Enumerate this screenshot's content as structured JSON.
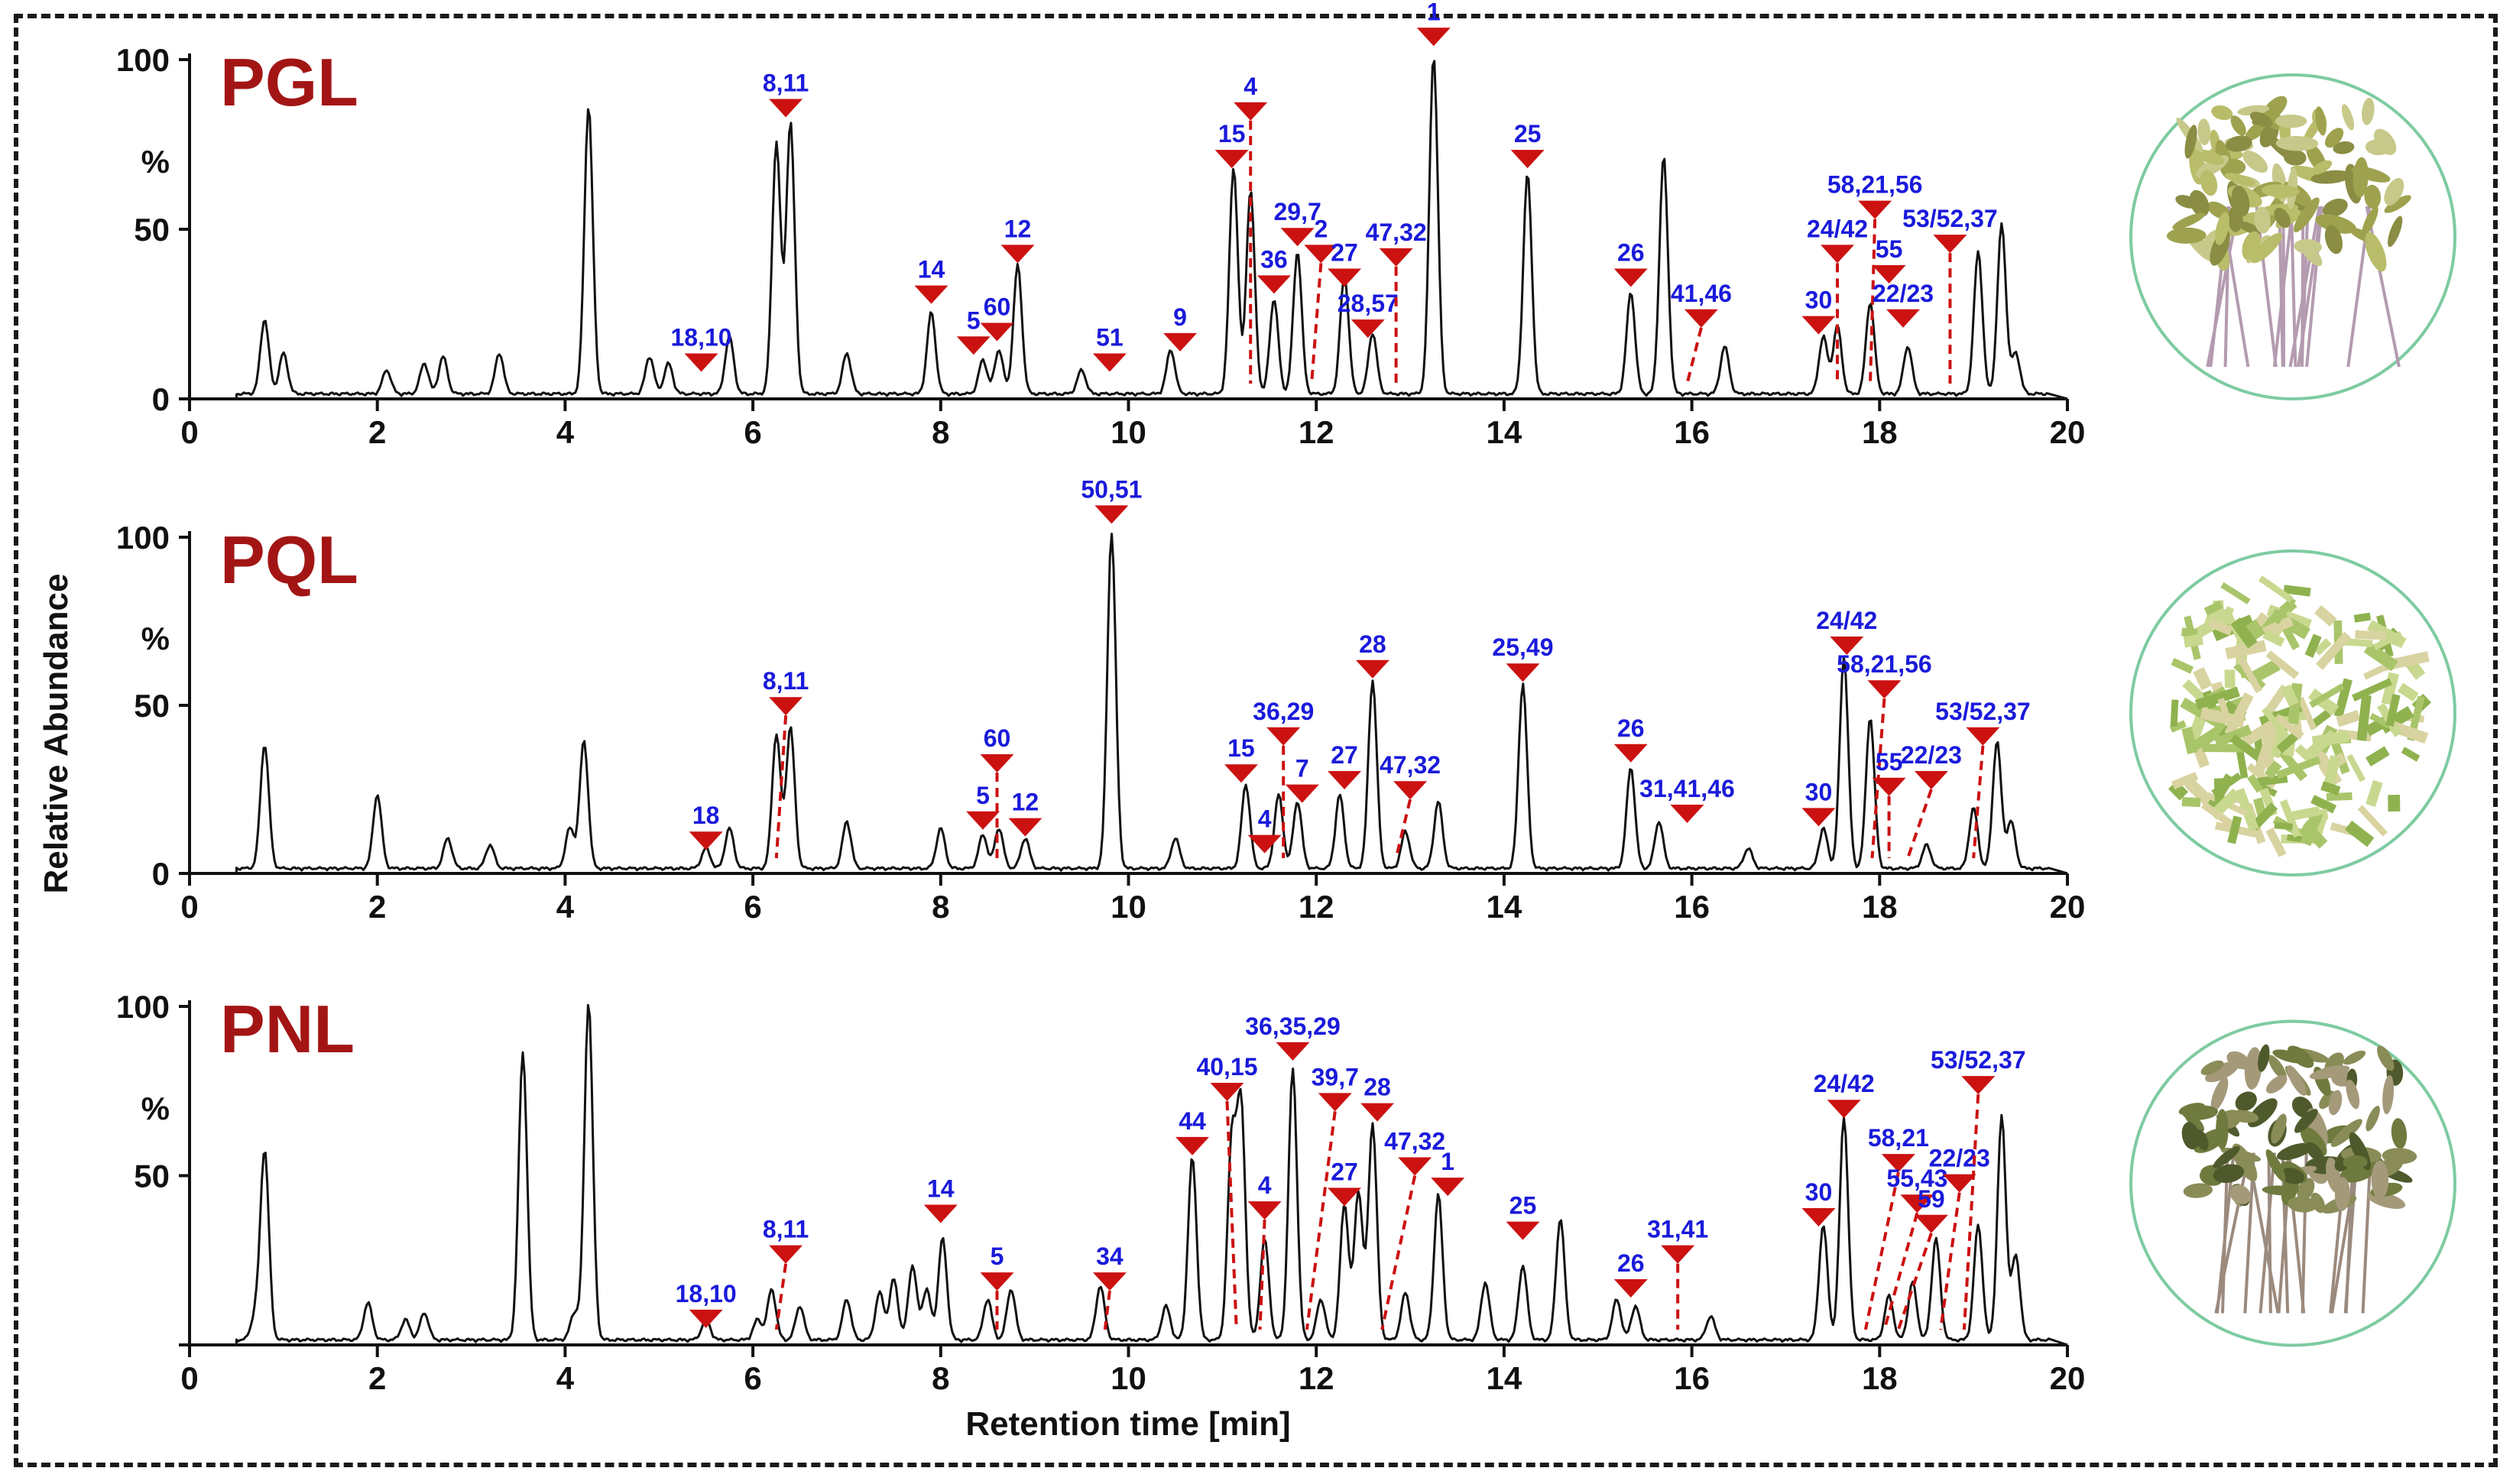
{
  "chart_data": {
    "type": "line",
    "xlabel": "Retention time [min]",
    "ylabel": "Relative Abundance",
    "xlim": [
      0,
      20
    ],
    "ylim": [
      0,
      100
    ],
    "x_ticks": [
      "0",
      "2",
      "4",
      "6",
      "8",
      "10",
      "12",
      "14",
      "16",
      "18",
      "20"
    ],
    "y_tick_labels": [
      "100",
      "%",
      "50",
      "0"
    ],
    "colors": {
      "trace": "#111111",
      "marker": "#cc1111",
      "label": "#1a1adb",
      "sample_title": "#a31515",
      "photo_border": "#7ecba1"
    },
    "panels": [
      {
        "title": "PGL",
        "photo": "dried whole herb with leaves and stems",
        "peaks": [
          [
            0.8,
            22
          ],
          [
            1.0,
            12
          ],
          [
            2.1,
            7
          ],
          [
            2.5,
            9
          ],
          [
            2.7,
            11
          ],
          [
            3.3,
            12
          ],
          [
            4.25,
            85
          ],
          [
            4.9,
            11
          ],
          [
            5.1,
            9
          ],
          [
            5.75,
            17
          ],
          [
            6.25,
            74
          ],
          [
            6.4,
            80
          ],
          [
            7.0,
            12
          ],
          [
            7.9,
            24
          ],
          [
            8.45,
            10
          ],
          [
            8.62,
            13
          ],
          [
            8.82,
            38
          ],
          [
            9.5,
            7
          ],
          [
            10.45,
            13
          ],
          [
            11.12,
            67
          ],
          [
            11.3,
            60
          ],
          [
            11.55,
            28
          ],
          [
            11.8,
            42
          ],
          [
            12.3,
            35
          ],
          [
            12.6,
            18
          ],
          [
            13.25,
            100
          ],
          [
            14.25,
            65
          ],
          [
            15.35,
            30
          ],
          [
            15.7,
            70
          ],
          [
            16.35,
            14
          ],
          [
            17.4,
            17
          ],
          [
            17.55,
            20
          ],
          [
            17.9,
            27
          ],
          [
            18.3,
            14
          ],
          [
            19.05,
            42
          ],
          [
            19.3,
            50
          ],
          [
            19.45,
            12
          ]
        ],
        "markers": [
          {
            "label": "18,10",
            "x": 5.45,
            "y": 8,
            "to": null
          },
          {
            "label": "8,11",
            "x": 6.35,
            "y": 83,
            "to": null
          },
          {
            "label": "14",
            "x": 7.9,
            "y": 28,
            "to": null
          },
          {
            "label": "5",
            "x": 8.35,
            "y": 13,
            "to": null
          },
          {
            "label": "60",
            "x": 8.6,
            "y": 17,
            "to": null
          },
          {
            "label": "12",
            "x": 8.82,
            "y": 40,
            "to": null
          },
          {
            "label": "51",
            "x": 9.8,
            "y": 8,
            "to": null
          },
          {
            "label": "9",
            "x": 10.55,
            "y": 14,
            "to": null
          },
          {
            "label": "15",
            "x": 11.1,
            "y": 68,
            "to": null
          },
          {
            "label": "4",
            "x": 11.3,
            "y": 82,
            "to": 11.3
          },
          {
            "label": "36",
            "x": 11.55,
            "y": 31,
            "to": null
          },
          {
            "label": "29,7",
            "x": 11.8,
            "y": 45,
            "to": null
          },
          {
            "label": "2",
            "x": 12.05,
            "y": 40,
            "to": 11.95
          },
          {
            "label": "27",
            "x": 12.3,
            "y": 33,
            "to": null
          },
          {
            "label": "28,57",
            "x": 12.55,
            "y": 18,
            "to": null
          },
          {
            "label": "47,32",
            "x": 12.85,
            "y": 39,
            "to": 12.85
          },
          {
            "label": "1",
            "x": 13.25,
            "y": 104,
            "to": null
          },
          {
            "label": "25",
            "x": 14.25,
            "y": 68,
            "to": null
          },
          {
            "label": "26",
            "x": 15.35,
            "y": 33,
            "to": null
          },
          {
            "label": "41,46",
            "x": 16.1,
            "y": 21,
            "to": 15.95
          },
          {
            "label": "30",
            "x": 17.35,
            "y": 19,
            "to": null
          },
          {
            "label": "24/42",
            "x": 17.55,
            "y": 40,
            "to": 17.55
          },
          {
            "label": "58,21,56",
            "x": 17.95,
            "y": 53,
            "to": 17.9
          },
          {
            "label": "55",
            "x": 18.1,
            "y": 34,
            "to": null
          },
          {
            "label": "22/23",
            "x": 18.25,
            "y": 21,
            "to": null
          },
          {
            "label": "53/52,37",
            "x": 18.75,
            "y": 43,
            "to": 18.75
          }
        ]
      },
      {
        "title": "PQL",
        "photo": "dried chopped herb pieces",
        "peaks": [
          [
            0.8,
            37
          ],
          [
            2.0,
            22
          ],
          [
            2.75,
            9
          ],
          [
            3.2,
            7
          ],
          [
            4.05,
            12
          ],
          [
            4.2,
            38
          ],
          [
            5.5,
            6
          ],
          [
            5.75,
            12
          ],
          [
            6.25,
            40
          ],
          [
            6.4,
            42
          ],
          [
            7.0,
            14
          ],
          [
            8.0,
            12
          ],
          [
            8.45,
            10
          ],
          [
            8.62,
            12
          ],
          [
            8.9,
            9
          ],
          [
            9.82,
            100
          ],
          [
            10.5,
            9
          ],
          [
            11.25,
            25
          ],
          [
            11.6,
            22
          ],
          [
            11.8,
            20
          ],
          [
            12.25,
            22
          ],
          [
            12.6,
            56
          ],
          [
            12.95,
            11
          ],
          [
            13.3,
            20
          ],
          [
            14.2,
            55
          ],
          [
            15.35,
            30
          ],
          [
            15.65,
            14
          ],
          [
            16.6,
            6
          ],
          [
            17.4,
            12
          ],
          [
            17.62,
            63
          ],
          [
            17.9,
            45
          ],
          [
            18.5,
            7
          ],
          [
            19.0,
            18
          ],
          [
            19.25,
            38
          ],
          [
            19.4,
            14
          ]
        ],
        "markers": [
          {
            "label": "18",
            "x": 5.5,
            "y": 7,
            "to": null
          },
          {
            "label": "8,11",
            "x": 6.35,
            "y": 47,
            "to": 6.25
          },
          {
            "label": "5",
            "x": 8.45,
            "y": 13,
            "to": null
          },
          {
            "label": "60",
            "x": 8.6,
            "y": 30,
            "to": 8.6
          },
          {
            "label": "12",
            "x": 8.9,
            "y": 11,
            "to": null
          },
          {
            "label": "50,51",
            "x": 9.82,
            "y": 104,
            "to": null
          },
          {
            "label": "15",
            "x": 11.2,
            "y": 27,
            "to": null
          },
          {
            "label": "4",
            "x": 11.45,
            "y": 6,
            "to": null
          },
          {
            "label": "36,29",
            "x": 11.65,
            "y": 38,
            "to": 11.65
          },
          {
            "label": "7",
            "x": 11.85,
            "y": 21,
            "to": null
          },
          {
            "label": "27",
            "x": 12.3,
            "y": 25,
            "to": null
          },
          {
            "label": "28",
            "x": 12.6,
            "y": 58,
            "to": null
          },
          {
            "label": "47,32",
            "x": 13.0,
            "y": 22,
            "to": 12.85
          },
          {
            "label": "25,49",
            "x": 14.2,
            "y": 57,
            "to": null
          },
          {
            "label": "26",
            "x": 15.35,
            "y": 33,
            "to": null
          },
          {
            "label": "31,41,46",
            "x": 15.95,
            "y": 15,
            "to": null
          },
          {
            "label": "30",
            "x": 17.35,
            "y": 14,
            "to": null
          },
          {
            "label": "24/42",
            "x": 17.65,
            "y": 65,
            "to": null
          },
          {
            "label": "58,21,56",
            "x": 18.05,
            "y": 52,
            "to": 17.92
          },
          {
            "label": "55",
            "x": 18.1,
            "y": 23,
            "to": 18.1
          },
          {
            "label": "22/23",
            "x": 18.55,
            "y": 25,
            "to": 18.3
          },
          {
            "label": "53/52,37",
            "x": 19.1,
            "y": 38,
            "to": 19.0
          }
        ]
      },
      {
        "title": "PNL",
        "photo": "dried whole herb with darker leaves and roots",
        "peaks": [
          [
            0.7,
            7
          ],
          [
            0.8,
            56
          ],
          [
            1.9,
            11
          ],
          [
            2.3,
            6
          ],
          [
            2.5,
            8
          ],
          [
            3.55,
            85
          ],
          [
            4.1,
            8
          ],
          [
            4.25,
            100
          ],
          [
            5.5,
            6
          ],
          [
            6.05,
            6
          ],
          [
            6.2,
            15
          ],
          [
            6.5,
            10
          ],
          [
            7.0,
            12
          ],
          [
            7.35,
            14
          ],
          [
            7.5,
            18
          ],
          [
            7.7,
            22
          ],
          [
            7.85,
            15
          ],
          [
            8.02,
            30
          ],
          [
            8.5,
            12
          ],
          [
            8.75,
            15
          ],
          [
            9.7,
            16
          ],
          [
            10.4,
            10
          ],
          [
            10.68,
            54
          ],
          [
            11.1,
            58
          ],
          [
            11.2,
            68
          ],
          [
            11.45,
            30
          ],
          [
            11.75,
            80
          ],
          [
            12.05,
            12
          ],
          [
            12.3,
            40
          ],
          [
            12.45,
            44
          ],
          [
            12.6,
            64
          ],
          [
            12.95,
            14
          ],
          [
            13.3,
            43
          ],
          [
            13.8,
            17
          ],
          [
            14.2,
            22
          ],
          [
            14.6,
            36
          ],
          [
            15.2,
            12
          ],
          [
            15.4,
            10
          ],
          [
            16.2,
            7
          ],
          [
            17.4,
            34
          ],
          [
            17.62,
            66
          ],
          [
            18.1,
            13
          ],
          [
            18.35,
            17
          ],
          [
            18.6,
            30
          ],
          [
            19.05,
            34
          ],
          [
            19.3,
            66
          ],
          [
            19.45,
            25
          ]
        ],
        "markers": [
          {
            "label": "18,10",
            "x": 5.5,
            "y": 5,
            "to": null
          },
          {
            "label": "8,11",
            "x": 6.35,
            "y": 24,
            "to": 6.25
          },
          {
            "label": "14",
            "x": 8.0,
            "y": 36,
            "to": null
          },
          {
            "label": "5",
            "x": 8.6,
            "y": 16,
            "to": 8.6
          },
          {
            "label": "34",
            "x": 9.8,
            "y": 16,
            "to": 9.75
          },
          {
            "label": "44",
            "x": 10.68,
            "y": 56,
            "to": null
          },
          {
            "label": "40,15",
            "x": 11.05,
            "y": 72,
            "to": 11.15
          },
          {
            "label": "4",
            "x": 11.45,
            "y": 37,
            "to": 11.4
          },
          {
            "label": "36,35,29",
            "x": 11.75,
            "y": 84,
            "to": null
          },
          {
            "label": "39,7",
            "x": 12.2,
            "y": 69,
            "to": 11.9
          },
          {
            "label": "27",
            "x": 12.3,
            "y": 41,
            "to": null
          },
          {
            "label": "28",
            "x": 12.65,
            "y": 66,
            "to": null
          },
          {
            "label": "47,32",
            "x": 13.05,
            "y": 50,
            "to": 12.7
          },
          {
            "label": "1",
            "x": 13.4,
            "y": 44,
            "to": null
          },
          {
            "label": "25",
            "x": 14.2,
            "y": 31,
            "to": null
          },
          {
            "label": "26",
            "x": 15.35,
            "y": 14,
            "to": null
          },
          {
            "label": "31,41",
            "x": 15.85,
            "y": 24,
            "to": 15.85
          },
          {
            "label": "30",
            "x": 17.35,
            "y": 35,
            "to": null
          },
          {
            "label": "24/42",
            "x": 17.62,
            "y": 67,
            "to": null
          },
          {
            "label": "58,21",
            "x": 18.2,
            "y": 51,
            "to": 17.85
          },
          {
            "label": "55,43",
            "x": 18.4,
            "y": 39,
            "to": 18.05
          },
          {
            "label": "59",
            "x": 18.55,
            "y": 33,
            "to": 18.2
          },
          {
            "label": "22/23",
            "x": 18.85,
            "y": 45,
            "to": 18.65
          },
          {
            "label": "53/52,37",
            "x": 19.05,
            "y": 74,
            "to": 18.9
          }
        ]
      }
    ]
  }
}
